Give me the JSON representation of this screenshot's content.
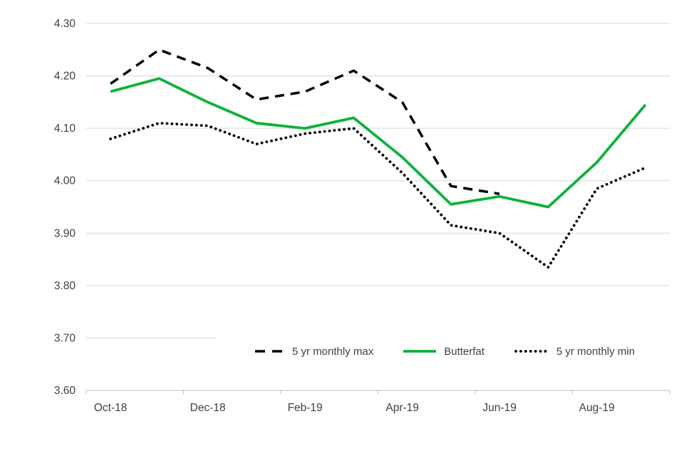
{
  "chart_data": {
    "type": "line",
    "title": "",
    "categories": [
      "Oct-18",
      "Nov-18",
      "Dec-18",
      "Jan-19",
      "Feb-19",
      "Mar-19",
      "Apr-19",
      "May-19",
      "Jun-19",
      "Jul-19",
      "Aug-19",
      "Sep-19"
    ],
    "x_axis": {
      "tick_label_indices": [
        0,
        2,
        4,
        6,
        8,
        10
      ],
      "tick_labels": [
        "Oct-18",
        "Dec-18",
        "Feb-19",
        "Apr-19",
        "Jun-19",
        "Aug-19"
      ]
    },
    "y_axis": {
      "min": 3.6,
      "max": 4.3,
      "tick_step": 0.1,
      "tick_labels": [
        "4.30",
        "4.20",
        "4.10",
        "4.00",
        "3.90",
        "3.80",
        "3.70",
        "3.60"
      ]
    },
    "grid": {
      "horizontal": true,
      "vertical": false
    },
    "legend_position": "bottom-center",
    "series": [
      {
        "name": "5 yr monthly max",
        "line_style": "dashed",
        "color": "#000000",
        "values": [
          4.185,
          4.25,
          4.215,
          4.155,
          4.17,
          4.21,
          4.15,
          3.99,
          3.975,
          null,
          null,
          null
        ]
      },
      {
        "name": "Butterfat",
        "line_style": "solid",
        "color": "#0fb239",
        "values": [
          4.17,
          4.195,
          4.15,
          4.11,
          4.1,
          4.12,
          4.045,
          3.955,
          3.97,
          3.95,
          4.035,
          4.145
        ]
      },
      {
        "name": "5 yr monthly min",
        "line_style": "dotted",
        "color": "#000000",
        "values": [
          4.08,
          4.11,
          4.105,
          4.07,
          4.09,
          4.1,
          4.015,
          3.915,
          3.9,
          3.835,
          3.985,
          4.025
        ]
      }
    ]
  },
  "colors": {
    "axis_text": "#404040",
    "gridline": "#d9d9d9",
    "axis_line": "#bfbfbf",
    "background": "#ffffff"
  }
}
